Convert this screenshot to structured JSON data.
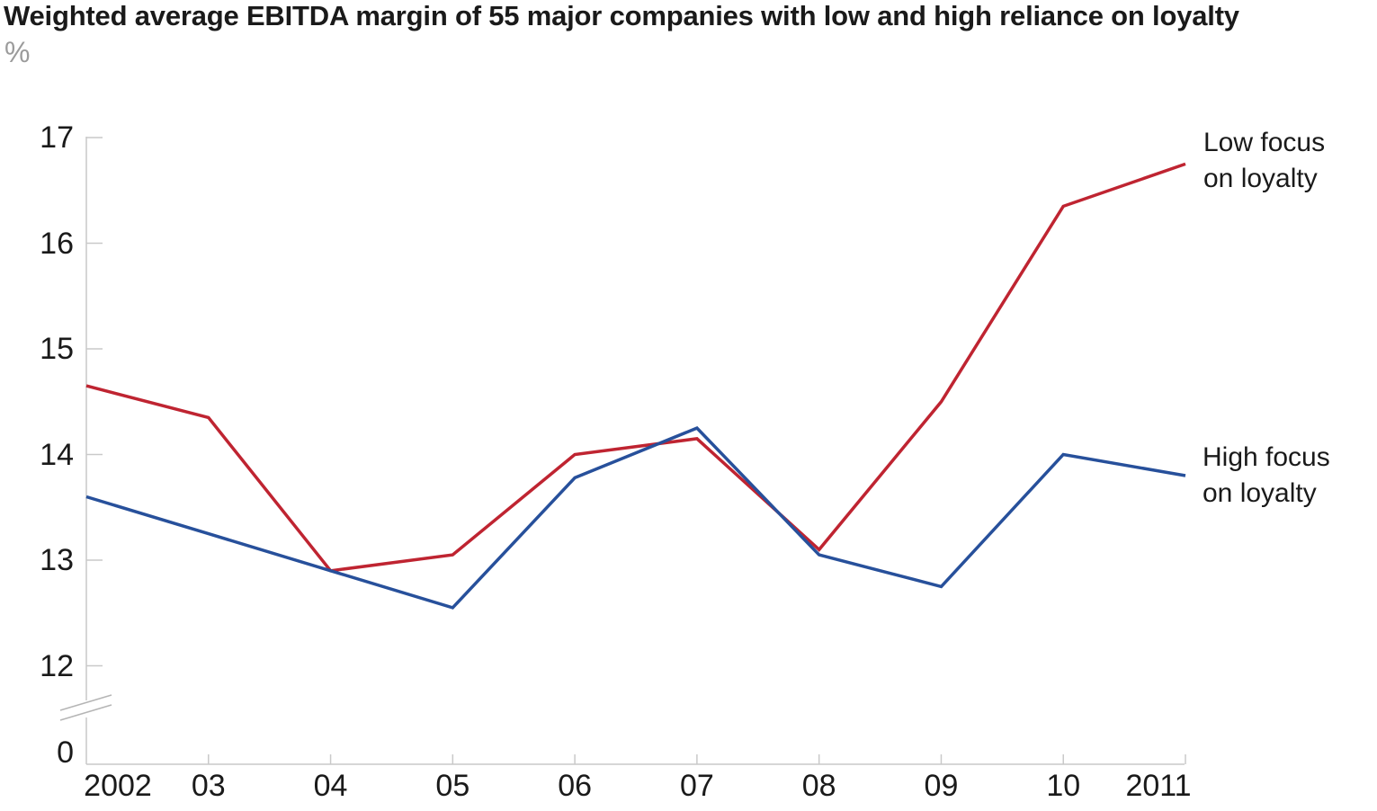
{
  "header": {
    "title": "Weighted average EBITDA margin of 55 major companies with low and high reliance on loyalty",
    "subtitle": "%"
  },
  "chart_data": {
    "type": "line",
    "title": "Weighted average EBITDA margin of 55 major companies with low and high reliance on loyalty",
    "ylabel": "%",
    "xlabel": "",
    "categories": [
      "2002",
      "03",
      "04",
      "05",
      "06",
      "07",
      "08",
      "09",
      "10",
      "2011"
    ],
    "series": [
      {
        "name": "Low focus on loyalty",
        "label_lines": [
          "Low focus",
          "on loyalty"
        ],
        "color": "#bf2431",
        "values": [
          14.65,
          14.35,
          12.9,
          13.05,
          14.0,
          14.15,
          13.1,
          14.5,
          16.35,
          16.75
        ]
      },
      {
        "name": "High focus on loyalty",
        "label_lines": [
          "High focus",
          "on loyalty"
        ],
        "color": "#27509b",
        "values": [
          13.6,
          13.25,
          12.9,
          12.55,
          13.78,
          14.25,
          13.05,
          12.75,
          14.0,
          13.8
        ]
      }
    ],
    "yticks": [
      12,
      13,
      14,
      15,
      16,
      17
    ],
    "ylim": [
      12,
      17
    ],
    "y_axis_break": true,
    "y_break_label": "0",
    "grid": false,
    "legend_position": "right of line ends",
    "axis_color": "#c9c9c9",
    "break_mark_color": "#b5b5b5"
  }
}
